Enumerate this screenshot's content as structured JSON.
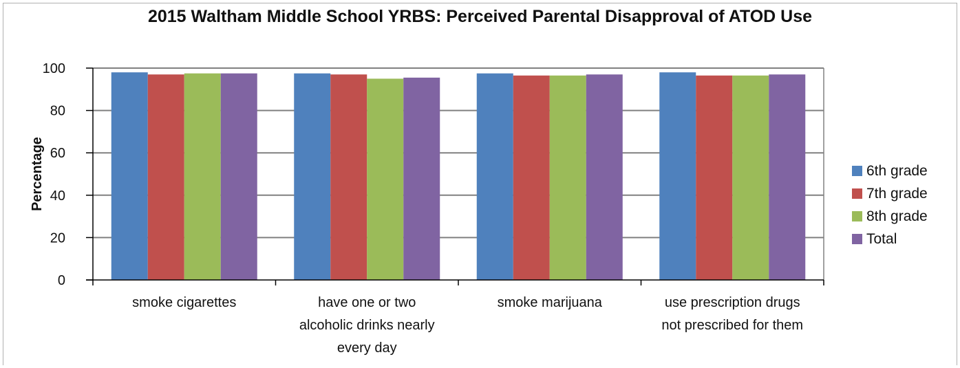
{
  "chart_data": {
    "type": "bar",
    "title": "2015 Waltham Middle School YRBS: Perceived Parental Disapproval of ATOD Use",
    "ylabel": "Percentage",
    "xlabel": "",
    "ylim": [
      0,
      100
    ],
    "yticks": [
      0,
      20,
      40,
      60,
      80,
      100
    ],
    "grid": true,
    "legend_position": "right",
    "categories": [
      [
        "smoke cigarettes"
      ],
      [
        "have one or two",
        "alcoholic drinks nearly",
        "every day"
      ],
      [
        "smoke marijuana"
      ],
      [
        "use prescription drugs",
        "not prescribed for them"
      ]
    ],
    "series": [
      {
        "name": "6th grade",
        "color": "#4f81bd",
        "values": [
          98,
          97.5,
          97.5,
          98
        ]
      },
      {
        "name": "7th grade",
        "color": "#c0504d",
        "values": [
          97,
          97,
          96.5,
          96.5
        ]
      },
      {
        "name": "8th grade",
        "color": "#9bbb59",
        "values": [
          97.5,
          95,
          96.5,
          96.5
        ]
      },
      {
        "name": "Total",
        "color": "#8064a2",
        "values": [
          97.5,
          95.5,
          97,
          97
        ]
      }
    ]
  }
}
